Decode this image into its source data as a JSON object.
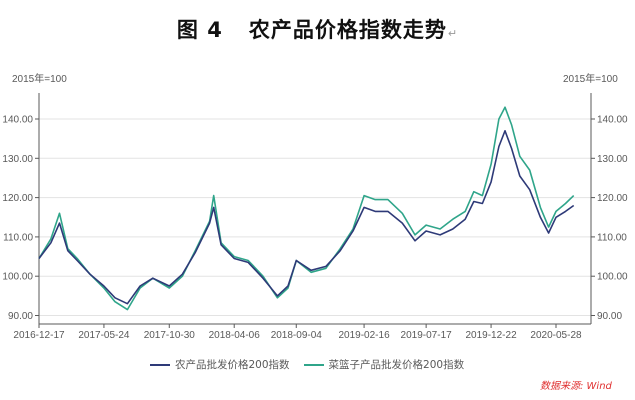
{
  "title": {
    "figure_no": "图 4",
    "text": "农产品价格指数走势",
    "return_mark": "↵"
  },
  "axis": {
    "left_unit": "2015年=100",
    "right_unit": "2015年=100"
  },
  "legend": {
    "series1": "农产品批发价格200指数",
    "series2": "菜篮子产品批发价格200指数"
  },
  "source": "数据来源: Wind",
  "colors": {
    "series1": "#2e3a78",
    "series2": "#2fa58a",
    "grid": "#e3e3e3",
    "axis": "#595959",
    "source": "#e03030"
  },
  "chart_data": {
    "type": "line",
    "title": "图 4 农产品价格指数走势",
    "xlabel": "",
    "ylabel": "2015年=100",
    "ylabel_right": "2015年=100",
    "ylim": [
      88,
      147
    ],
    "yticks": [
      90.0,
      100.0,
      110.0,
      120.0,
      130.0,
      140.0
    ],
    "ytick_labels": [
      "90.00",
      "100.00",
      "110.00",
      "120.00",
      "130.00",
      "140.00"
    ],
    "xtick_labels": [
      "2016-12-17",
      "2017-05-24",
      "2017-10-30",
      "2018-04-06",
      "2018-09-04",
      "2019-02-16",
      "2019-07-17",
      "2019-12-22",
      "2020-05-28"
    ],
    "grid": true,
    "legend_position": "bottom",
    "x": [
      "2016-12-17",
      "2017-01-15",
      "2017-02-05",
      "2017-02-25",
      "2017-03-20",
      "2017-04-20",
      "2017-05-24",
      "2017-06-20",
      "2017-07-20",
      "2017-08-20",
      "2017-09-20",
      "2017-10-30",
      "2017-12-01",
      "2018-01-01",
      "2018-02-05",
      "2018-02-15",
      "2018-03-05",
      "2018-04-06",
      "2018-05-10",
      "2018-06-15",
      "2018-07-20",
      "2018-08-15",
      "2018-09-04",
      "2018-10-10",
      "2018-11-15",
      "2018-12-20",
      "2019-01-20",
      "2019-02-16",
      "2019-03-15",
      "2019-04-15",
      "2019-05-20",
      "2019-06-20",
      "2019-07-17",
      "2019-08-20",
      "2019-09-20",
      "2019-10-20",
      "2019-11-10",
      "2019-12-01",
      "2019-12-22",
      "2020-01-10",
      "2020-01-25",
      "2020-02-10",
      "2020-03-01",
      "2020-03-25",
      "2020-04-20",
      "2020-05-10",
      "2020-05-28",
      "2020-06-20",
      "2020-07-10"
    ],
    "series": [
      {
        "name": "农产品批发价格200指数",
        "values": [
          104.5,
          108.5,
          113.5,
          106.5,
          104.0,
          100.5,
          97.5,
          94.5,
          93.0,
          97.5,
          99.5,
          97.5,
          100.5,
          106.0,
          113.5,
          117.5,
          108.0,
          104.5,
          103.5,
          99.5,
          95.0,
          97.5,
          104.0,
          101.5,
          102.5,
          106.5,
          111.5,
          117.5,
          116.5,
          116.5,
          113.5,
          109.0,
          111.5,
          110.5,
          112.0,
          114.5,
          119.0,
          118.5,
          124.0,
          133.0,
          137.0,
          132.5,
          125.5,
          122.0,
          115.0,
          111.0,
          115.0,
          116.5,
          118.0
        ]
      },
      {
        "name": "菜篮子产品批发价格200指数",
        "values": [
          104.5,
          109.5,
          116.0,
          107.0,
          104.5,
          100.5,
          97.0,
          93.5,
          91.5,
          97.0,
          99.5,
          97.0,
          100.0,
          106.5,
          114.0,
          120.5,
          108.5,
          105.0,
          104.0,
          100.0,
          94.5,
          97.0,
          104.0,
          101.0,
          102.0,
          107.0,
          112.0,
          120.5,
          119.5,
          119.5,
          116.0,
          110.5,
          113.0,
          112.0,
          114.5,
          116.5,
          121.5,
          120.5,
          128.5,
          140.0,
          143.0,
          138.5,
          130.5,
          127.0,
          117.5,
          112.5,
          116.5,
          118.5,
          120.5
        ]
      }
    ]
  }
}
